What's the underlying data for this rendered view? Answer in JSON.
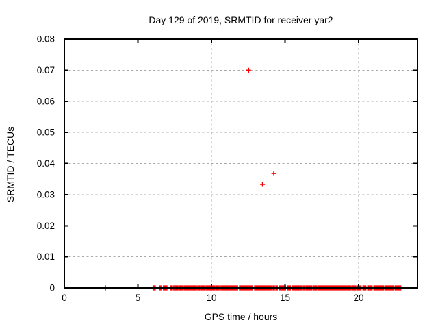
{
  "page": {
    "background": "#ffffff"
  },
  "chart_data": {
    "type": "scatter",
    "title": "Day 129 of 2019, SRMTID for receiver yar2",
    "xlabel": "GPS time / hours",
    "ylabel": "SRMTID / TECUs",
    "xlim": [
      0,
      24
    ],
    "ylim": [
      0,
      0.08
    ],
    "xticks": {
      "values": [
        0,
        5,
        10,
        15,
        20
      ],
      "labels": [
        "0",
        "5",
        "10",
        "15",
        "20"
      ]
    },
    "yticks": {
      "values": [
        0,
        0.01,
        0.02,
        0.03,
        0.04,
        0.05,
        0.06,
        0.07,
        0.08
      ],
      "labels": [
        "0",
        "0.01",
        "0.02",
        "0.03",
        "0.04",
        "0.05",
        "0.06",
        "0.07",
        "0.08"
      ]
    },
    "grid": {
      "visible": true,
      "style": "dashed",
      "color": "#a8a8a8"
    },
    "legend": "none",
    "axes_color": "#000000",
    "marker": {
      "shape": "plus",
      "color": "#ff0000",
      "size": 7.2,
      "stroke": 1.7
    },
    "series": [
      {
        "name": "SRMTID",
        "points": [
          {
            "x": 12.52,
            "y": 0.07
          },
          {
            "x": 13.47,
            "y": 0.0333
          },
          {
            "x": 14.24,
            "y": 0.0368
          }
        ],
        "zero_value_singles": [
          2.79
        ],
        "zero_value_runs": [
          [
            6.04,
            6.17
          ],
          [
            6.46,
            6.56
          ],
          [
            6.74,
            6.97
          ],
          [
            7.25,
            7.34
          ],
          [
            7.44,
            7.58
          ],
          [
            7.62,
            7.72
          ],
          [
            7.81,
            8.09
          ],
          [
            8.18,
            8.51
          ],
          [
            8.6,
            8.98
          ],
          [
            9.07,
            9.21
          ],
          [
            9.3,
            9.58
          ],
          [
            9.67,
            9.86
          ],
          [
            9.91,
            10.23
          ],
          [
            10.33,
            10.51
          ],
          [
            10.65,
            11.58
          ],
          [
            11.67,
            11.77
          ],
          [
            11.91,
            12.8
          ],
          [
            12.94,
            13.17
          ],
          [
            13.26,
            14.05
          ],
          [
            14.19,
            14.28
          ],
          [
            14.38,
            14.47
          ],
          [
            14.61,
            15.03
          ],
          [
            15.17,
            15.36
          ],
          [
            15.5,
            16.11
          ],
          [
            16.24,
            16.34
          ],
          [
            16.43,
            16.8
          ],
          [
            16.9,
            16.99
          ],
          [
            17.04,
            17.13
          ],
          [
            17.22,
            17.32
          ],
          [
            17.41,
            18.48
          ],
          [
            18.58,
            19.46
          ],
          [
            19.55,
            19.64
          ],
          [
            19.69,
            19.79
          ],
          [
            19.88,
            20.16
          ],
          [
            20.3,
            20.49
          ],
          [
            20.62,
            20.91
          ],
          [
            21.04,
            21.13
          ],
          [
            21.23,
            21.69
          ],
          [
            21.79,
            22.02
          ],
          [
            22.11,
            22.39
          ],
          [
            22.49,
            22.86
          ]
        ]
      }
    ]
  }
}
